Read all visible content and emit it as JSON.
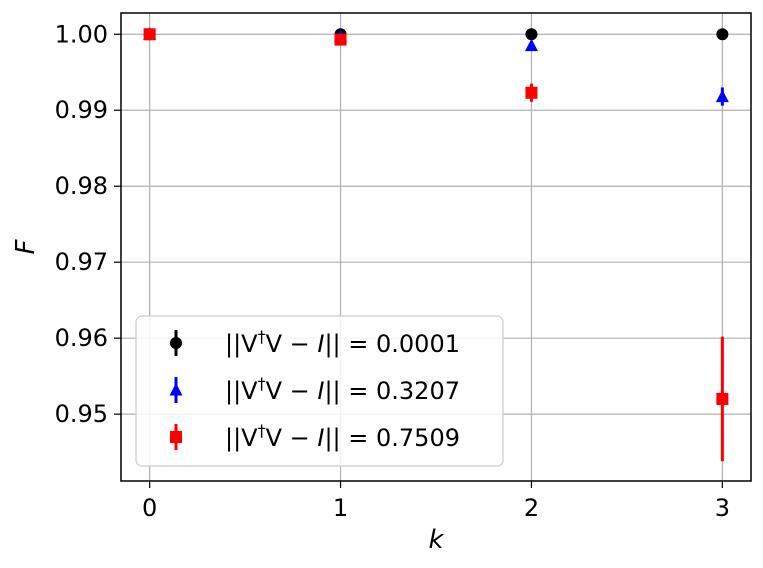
{
  "chart_data": {
    "type": "scatter",
    "title": "",
    "xlabel": "k",
    "ylabel": "F",
    "xlim": [
      -0.15,
      3.15
    ],
    "ylim": [
      0.9412,
      1.0028
    ],
    "xticks": [
      0,
      1,
      2,
      3
    ],
    "xtick_labels": [
      "0",
      "1",
      "2",
      "3"
    ],
    "yticks": [
      0.95,
      0.96,
      0.97,
      0.98,
      0.99,
      1.0
    ],
    "ytick_labels": [
      "0.95",
      "0.96",
      "0.97",
      "0.98",
      "0.99",
      "1.00"
    ],
    "grid": true,
    "legend_position": "lower-left",
    "series": [
      {
        "name": "||V†V − I|| = 0.0001",
        "legend": {
          "prefix": "||V",
          "sup": "†",
          "mid": "V − ",
          "italic": "I",
          "suffix": "|| = 0.0001"
        },
        "color": "#000000",
        "marker": "circle",
        "x": [
          0,
          1,
          2,
          3
        ],
        "y": [
          1.0,
          1.0,
          1.0,
          1.0
        ],
        "yerr": [
          0,
          0,
          0,
          0
        ]
      },
      {
        "name": "||V†V − I|| = 0.3207",
        "legend": {
          "prefix": "||V",
          "sup": "†",
          "mid": "V − ",
          "italic": "I",
          "suffix": "|| = 0.3207"
        },
        "color": "#0000ff",
        "marker": "triangle",
        "x": [
          0,
          1,
          2,
          3
        ],
        "y": [
          1.0,
          0.9997,
          0.9985,
          0.9918
        ],
        "yerr": [
          0,
          0.0001,
          0.0004,
          0.0012
        ]
      },
      {
        "name": "||V†V − I|| = 0.7509",
        "legend": {
          "prefix": "||V",
          "sup": "†",
          "mid": "V − ",
          "italic": "I",
          "suffix": "|| = 0.7509"
        },
        "color": "#ff0000",
        "marker": "square",
        "x": [
          0,
          1,
          2,
          3
        ],
        "y": [
          1.0,
          0.9993,
          0.9923,
          0.952
        ],
        "yerr": [
          0,
          0.0002,
          0.0012,
          0.0082
        ]
      }
    ]
  }
}
